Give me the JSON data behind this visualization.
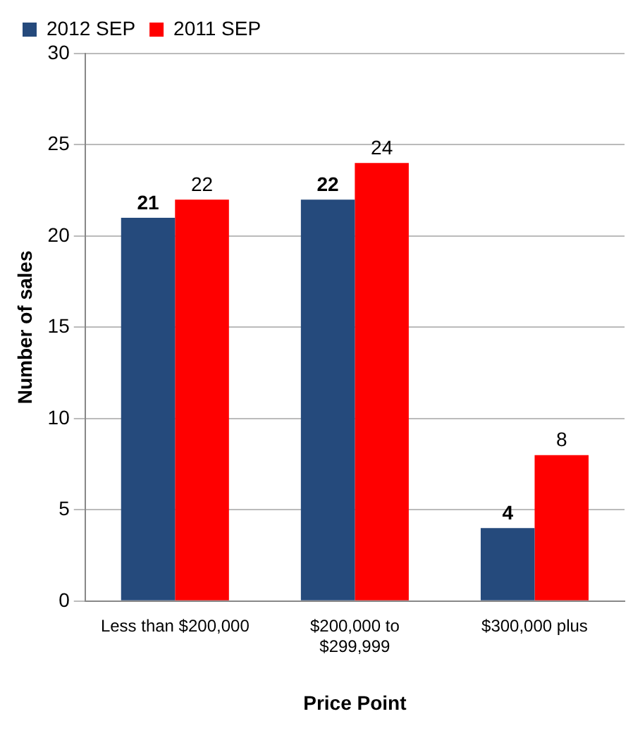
{
  "chart_data": {
    "type": "bar",
    "xlabel": "Price Point",
    "ylabel": "Number of sales",
    "categories": [
      "Less than $200,000",
      "$200,000 to $299,999",
      "$300,000 plus"
    ],
    "series": [
      {
        "name": "2012 SEP",
        "color": "#254a7c",
        "values": [
          21,
          22,
          4
        ]
      },
      {
        "name": "2011 SEP",
        "color": "#ff0000",
        "values": [
          22,
          24,
          8
        ]
      }
    ],
    "ylim": [
      0,
      30
    ],
    "yticks": [
      0,
      5,
      10,
      15,
      20,
      25,
      30
    ],
    "grid": "y",
    "legend": "top left",
    "data_labels": true
  }
}
